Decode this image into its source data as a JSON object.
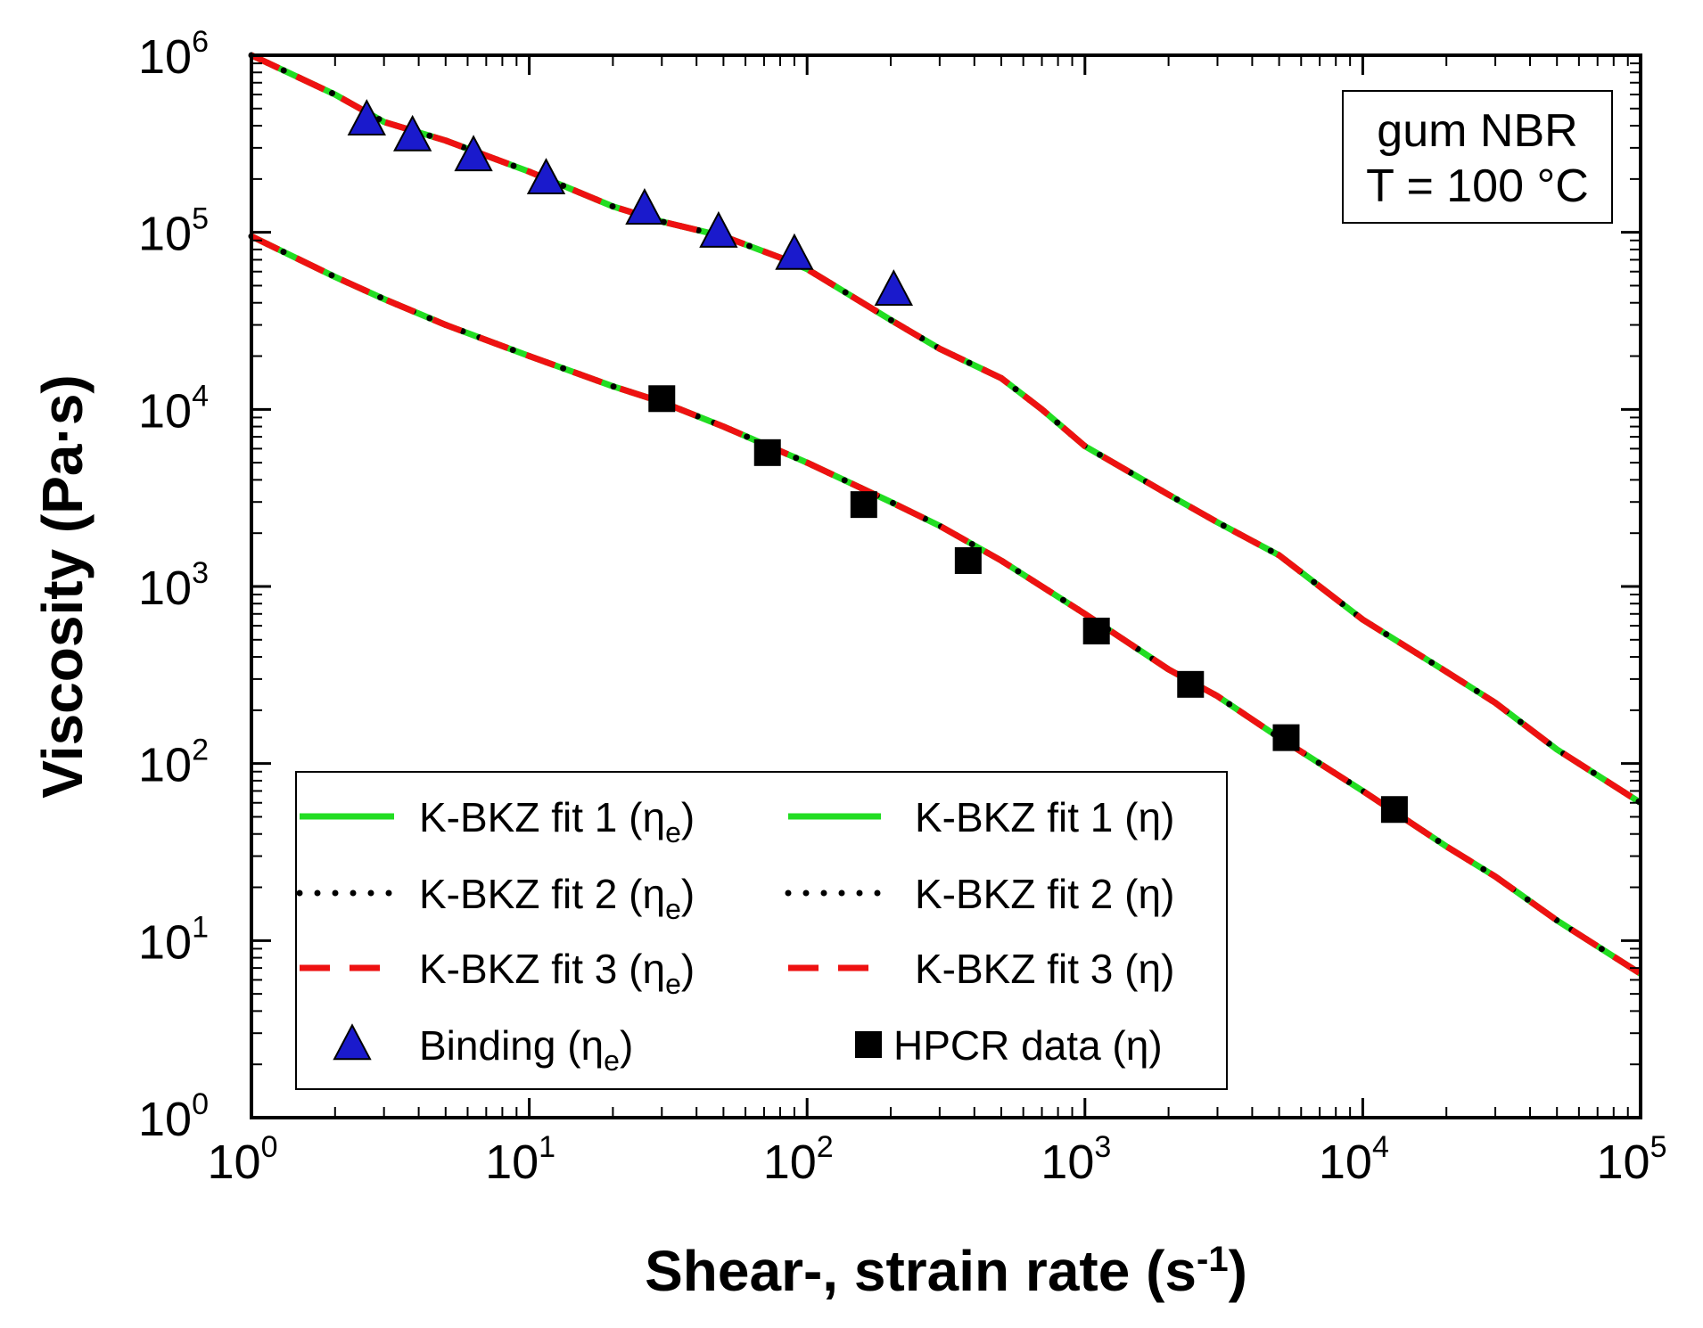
{
  "chart_data": {
    "type": "line",
    "xlabel": "Shear-, strain rate (s-1)",
    "xlabel_main": "Shear-, strain rate (s",
    "xlabel_sup": "-1",
    "xlabel_close": ")",
    "ylabel": "Viscosity (Pa·s)",
    "x_scale": "log",
    "y_scale": "log",
    "xlim": [
      1,
      100000
    ],
    "ylim": [
      1,
      1000000
    ],
    "x_ticks": [
      1,
      10,
      100,
      1000,
      10000,
      100000
    ],
    "x_tick_base": [
      "10",
      "10",
      "10",
      "10",
      "10",
      "10"
    ],
    "x_tick_exp": [
      "0",
      "1",
      "2",
      "3",
      "4",
      "5"
    ],
    "y_ticks": [
      1,
      10,
      100,
      1000,
      10000,
      100000,
      1000000
    ],
    "y_tick_base": [
      "10",
      "10",
      "10",
      "10",
      "10",
      "10",
      "10"
    ],
    "y_tick_exp": [
      "0",
      "1",
      "2",
      "3",
      "4",
      "5",
      "6"
    ],
    "grid": false,
    "legend_position": "bottom-left",
    "annotation": {
      "line1": "gum NBR",
      "line2": "T = 100 °C",
      "position": "top-right"
    },
    "colors": {
      "fit1": "#22dd22",
      "fit2": "#000000",
      "fit3": "#ee1111",
      "binding": "#1a1acc",
      "hpcr": "#000000"
    },
    "curves": {
      "eta_e": {
        "x": [
          1,
          2,
          3,
          5,
          10,
          20,
          30,
          50,
          80,
          100,
          200,
          300,
          500,
          700,
          1000,
          2000,
          3000,
          5000,
          10000,
          20000,
          30000,
          50000,
          100000
        ],
        "y": [
          1000000,
          600000,
          420000,
          330000,
          220000,
          140000,
          115000,
          95000,
          72000,
          62000,
          32000,
          22000,
          15000,
          10000,
          6200,
          3300,
          2300,
          1500,
          650,
          330,
          220,
          120,
          60
        ]
      },
      "eta": {
        "x": [
          1,
          2,
          3,
          5,
          10,
          20,
          30,
          50,
          100,
          200,
          300,
          500,
          1000,
          2000,
          3000,
          5000,
          10000,
          20000,
          30000,
          50000,
          100000
        ],
        "y": [
          95000,
          56000,
          42000,
          30000,
          20000,
          13500,
          11000,
          8000,
          5000,
          3000,
          2200,
          1400,
          700,
          340,
          240,
          140,
          70,
          34,
          23,
          13,
          6.5
        ]
      }
    },
    "series": [
      {
        "name": "K-BKZ fit 1 (ηe)",
        "curve": "eta_e",
        "style": "solid",
        "color": "#22dd22"
      },
      {
        "name": "K-BKZ fit 1 (η)",
        "curve": "eta",
        "style": "solid",
        "color": "#22dd22"
      },
      {
        "name": "K-BKZ fit 2 (ηe)",
        "curve": "eta_e",
        "style": "dotted",
        "color": "#000000"
      },
      {
        "name": "K-BKZ fit 2 (η)",
        "curve": "eta",
        "style": "dotted",
        "color": "#000000"
      },
      {
        "name": "K-BKZ fit 3 (ηe)",
        "curve": "eta_e",
        "style": "dashed",
        "color": "#ee1111"
      },
      {
        "name": "K-BKZ fit 3 (η)",
        "curve": "eta",
        "style": "dashed",
        "color": "#ee1111"
      }
    ],
    "markers": [
      {
        "name": "Binding (ηe)",
        "shape": "triangle",
        "color": "#1a1acc",
        "x": [
          2.6,
          3.8,
          6.3,
          11.5,
          26,
          48,
          90,
          205
        ],
        "y": [
          430000,
          350000,
          270000,
          200000,
          135000,
          100000,
          75000,
          47000
        ]
      },
      {
        "name": "HPCR data (η)",
        "shape": "square",
        "color": "#000000",
        "x": [
          30,
          72,
          160,
          380,
          1100,
          2400,
          5300,
          13000
        ],
        "y": [
          11500,
          5700,
          2900,
          1400,
          560,
          280,
          140,
          55
        ]
      }
    ],
    "legend": {
      "rows": [
        [
          {
            "label": "K-BKZ fit 1 (η",
            "sub": "e",
            "close": ")",
            "kind": "solid",
            "color": "#22dd22"
          },
          {
            "label": "K-BKZ fit 1 (η)",
            "sub": "",
            "close": "",
            "kind": "solid",
            "color": "#22dd22"
          }
        ],
        [
          {
            "label": "K-BKZ fit 2 (η",
            "sub": "e",
            "close": ")",
            "kind": "dotted",
            "color": "#000000"
          },
          {
            "label": "K-BKZ fit 2 (η)",
            "sub": "",
            "close": "",
            "kind": "dotted",
            "color": "#000000"
          }
        ],
        [
          {
            "label": "K-BKZ fit 3 (η",
            "sub": "e",
            "close": ")",
            "kind": "dashed",
            "color": "#ee1111"
          },
          {
            "label": "K-BKZ fit 3 (η)",
            "sub": "",
            "close": "",
            "kind": "dashed",
            "color": "#ee1111"
          }
        ],
        [
          {
            "label": "Binding (η",
            "sub": "e",
            "close": ")",
            "kind": "triangle",
            "color": "#1a1acc"
          },
          {
            "label": "HPCR data (η)",
            "sub": "",
            "close": "",
            "kind": "square",
            "color": "#000000"
          }
        ]
      ]
    }
  }
}
